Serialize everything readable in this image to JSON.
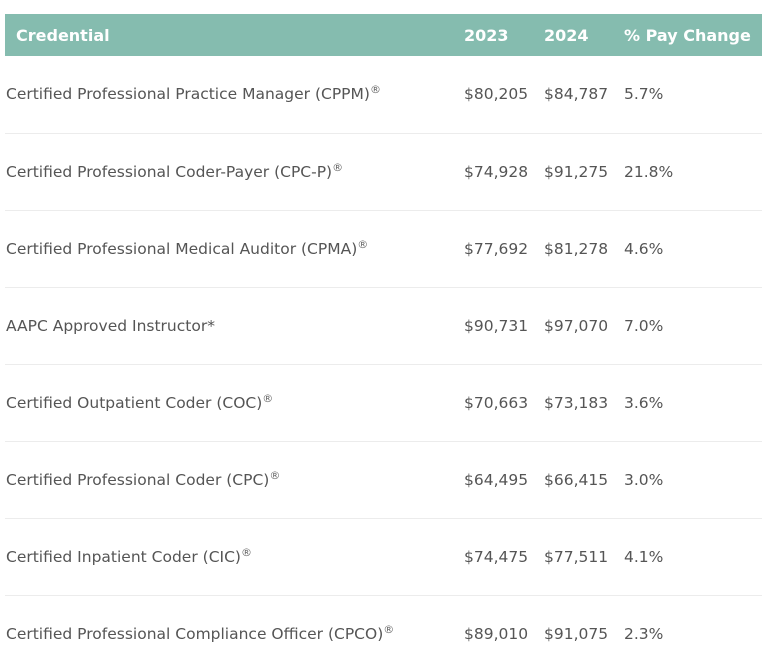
{
  "table": {
    "headers": [
      "Credential",
      "2023",
      "2024",
      "% Pay Change"
    ],
    "rows": [
      {
        "credential": "Certified Professional Practice Manager (CPPM)",
        "mark": "®",
        "y2023": "$80,205",
        "y2024": "$84,787",
        "change": "5.7%"
      },
      {
        "credential": "Certified Professional Coder-Payer (CPC-P)",
        "mark": "®",
        "y2023": "$74,928",
        "y2024": "$91,275",
        "change": "21.8%"
      },
      {
        "credential": "Certified Professional Medical Auditor (CPMA)",
        "mark": "®",
        "y2023": "$77,692",
        "y2024": "$81,278",
        "change": "4.6%"
      },
      {
        "credential": "AAPC Approved Instructor*",
        "mark": "",
        "y2023": "$90,731",
        "y2024": "$97,070",
        "change": "7.0%"
      },
      {
        "credential": "Certified Outpatient Coder (COC)",
        "mark": "®",
        "y2023": "$70,663",
        "y2024": "$73,183",
        "change": "3.6%"
      },
      {
        "credential": "Certified Professional Coder (CPC)",
        "mark": "®",
        "y2023": "$64,495",
        "y2024": "$66,415",
        "change": "3.0%"
      },
      {
        "credential": "Certified Inpatient Coder (CIC)",
        "mark": "®",
        "y2023": "$74,475",
        "y2024": "$77,511",
        "change": "4.1%"
      },
      {
        "credential": "Certified Professional Compliance Officer (CPCO)",
        "mark": "®",
        "y2023": "$89,010",
        "y2024": "$91,075",
        "change": "2.3%"
      }
    ]
  },
  "colors": {
    "header_bg": "#85bcaf",
    "header_text": "#ffffff",
    "body_text": "#555555",
    "row_divider": "#ececec"
  }
}
